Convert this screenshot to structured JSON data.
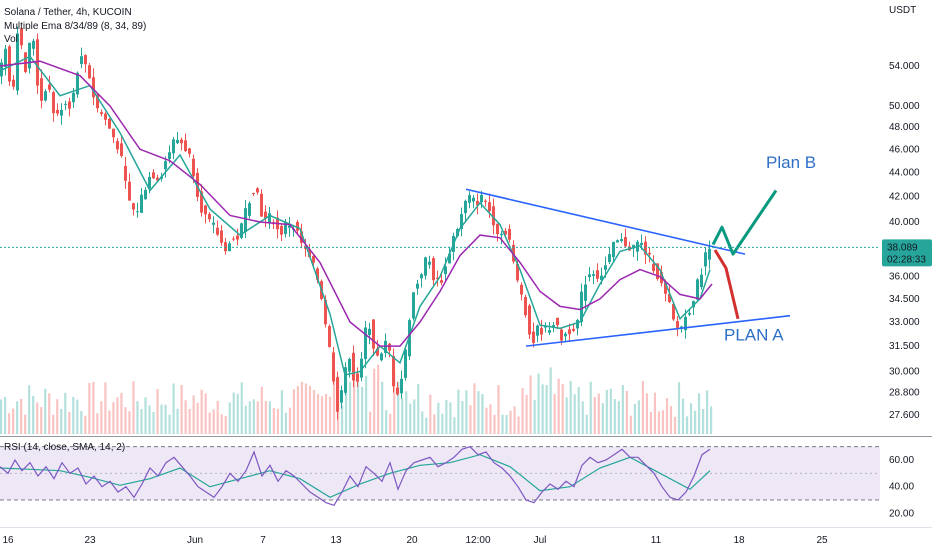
{
  "chart_data": {
    "type": "candlestick",
    "symbol_title": "Solana / Tether, 4h, KUCOIN",
    "indicators_legend": [
      "Multiple Ema 8/34/89 (8, 34, 89)",
      "Vol"
    ],
    "price_axis": {
      "currency": "USDT",
      "scale": "log",
      "ticks": [
        "54.000",
        "50.000",
        "48.000",
        "46.000",
        "44.000",
        "42.000",
        "40.000",
        "36.000",
        "34.500",
        "33.000",
        "31.500",
        "30.000",
        "28.800",
        "27.600"
      ],
      "range": [
        26.6,
        59.0
      ],
      "current_price": "38.089",
      "countdown": "02:28:33"
    },
    "time_axis": {
      "ticks": [
        "16",
        "23",
        "Jun",
        "7",
        "13",
        "20",
        "12:00",
        "Jul",
        "11",
        "18",
        "25"
      ]
    },
    "price_path": [
      [
        0,
        52.5
      ],
      [
        8,
        56.0
      ],
      [
        15,
        50.5
      ],
      [
        20,
        58.0
      ],
      [
        28,
        53.5
      ],
      [
        35,
        58.0
      ],
      [
        42,
        50.0
      ],
      [
        50,
        52.5
      ],
      [
        58,
        48.5
      ],
      [
        66,
        50.5
      ],
      [
        74,
        50.0
      ],
      [
        82,
        55.0
      ],
      [
        90,
        54.0
      ],
      [
        98,
        50.0
      ],
      [
        106,
        49.0
      ],
      [
        114,
        47.5
      ],
      [
        122,
        46.0
      ],
      [
        130,
        42.0
      ],
      [
        138,
        40.5
      ],
      [
        146,
        42.5
      ],
      [
        154,
        44.0
      ],
      [
        162,
        43.5
      ],
      [
        170,
        45.5
      ],
      [
        178,
        47.0
      ],
      [
        186,
        46.5
      ],
      [
        194,
        45.0
      ],
      [
        202,
        41.5
      ],
      [
        210,
        40.0
      ],
      [
        218,
        39.5
      ],
      [
        226,
        38.0
      ],
      [
        234,
        38.5
      ],
      [
        242,
        39.0
      ],
      [
        250,
        41.5
      ],
      [
        258,
        43.0
      ],
      [
        266,
        40.0
      ],
      [
        274,
        40.5
      ],
      [
        282,
        39.0
      ],
      [
        290,
        40.0
      ],
      [
        298,
        39.5
      ],
      [
        306,
        38.0
      ],
      [
        314,
        37.0
      ],
      [
        322,
        35.5
      ],
      [
        328,
        33.0
      ],
      [
        334,
        30.5
      ],
      [
        340,
        28.0
      ],
      [
        346,
        29.5
      ],
      [
        352,
        31.0
      ],
      [
        358,
        29.0
      ],
      [
        364,
        30.5
      ],
      [
        370,
        33.5
      ],
      [
        376,
        31.5
      ],
      [
        382,
        30.5
      ],
      [
        390,
        32.0
      ],
      [
        398,
        28.5
      ],
      [
        406,
        30.0
      ],
      [
        414,
        34.5
      ],
      [
        422,
        36.0
      ],
      [
        430,
        37.5
      ],
      [
        438,
        35.5
      ],
      [
        446,
        36.0
      ],
      [
        454,
        38.5
      ],
      [
        462,
        40.0
      ],
      [
        470,
        42.0
      ],
      [
        478,
        41.5
      ],
      [
        486,
        42.0
      ],
      [
        494,
        40.5
      ],
      [
        502,
        39.0
      ],
      [
        510,
        39.5
      ],
      [
        518,
        36.0
      ],
      [
        526,
        34.5
      ],
      [
        534,
        31.5
      ],
      [
        540,
        32.5
      ],
      [
        548,
        32.5
      ],
      [
        556,
        33.0
      ],
      [
        564,
        32.0
      ],
      [
        572,
        32.5
      ],
      [
        580,
        33.0
      ],
      [
        586,
        35.5
      ],
      [
        594,
        36.5
      ],
      [
        602,
        36.0
      ],
      [
        610,
        37.0
      ],
      [
        618,
        38.5
      ],
      [
        626,
        38.5
      ],
      [
        634,
        38.0
      ],
      [
        642,
        38.5
      ],
      [
        650,
        37.5
      ],
      [
        658,
        36.5
      ],
      [
        666,
        35.0
      ],
      [
        672,
        34.0
      ],
      [
        678,
        32.5
      ],
      [
        684,
        32.8
      ],
      [
        690,
        33.5
      ],
      [
        698,
        35.0
      ],
      [
        704,
        36.5
      ],
      [
        710,
        38.0
      ]
    ],
    "ema_fast": [
      [
        0,
        53.5
      ],
      [
        30,
        55.0
      ],
      [
        60,
        51.0
      ],
      [
        90,
        52.0
      ],
      [
        120,
        47.5
      ],
      [
        150,
        42.5
      ],
      [
        180,
        45.5
      ],
      [
        210,
        41.0
      ],
      [
        240,
        39.0
      ],
      [
        270,
        40.5
      ],
      [
        300,
        39.5
      ],
      [
        330,
        33.5
      ],
      [
        345,
        29.8
      ],
      [
        360,
        30.0
      ],
      [
        380,
        31.5
      ],
      [
        400,
        30.5
      ],
      [
        420,
        34.0
      ],
      [
        440,
        36.0
      ],
      [
        460,
        39.5
      ],
      [
        480,
        41.5
      ],
      [
        500,
        39.8
      ],
      [
        520,
        36.5
      ],
      [
        540,
        32.8
      ],
      [
        560,
        32.6
      ],
      [
        580,
        33.0
      ],
      [
        600,
        35.5
      ],
      [
        620,
        37.8
      ],
      [
        640,
        38.2
      ],
      [
        660,
        36.5
      ],
      [
        680,
        33.2
      ],
      [
        700,
        34.5
      ],
      [
        710,
        36.5
      ]
    ],
    "ema_slow": [
      [
        0,
        54.0
      ],
      [
        40,
        54.5
      ],
      [
        80,
        53.0
      ],
      [
        110,
        50.0
      ],
      [
        140,
        46.0
      ],
      [
        170,
        45.0
      ],
      [
        200,
        43.0
      ],
      [
        230,
        40.5
      ],
      [
        260,
        40.0
      ],
      [
        290,
        39.8
      ],
      [
        320,
        37.0
      ],
      [
        350,
        33.0
      ],
      [
        380,
        31.5
      ],
      [
        400,
        31.5
      ],
      [
        420,
        33.0
      ],
      [
        440,
        35.0
      ],
      [
        460,
        37.5
      ],
      [
        480,
        39.0
      ],
      [
        500,
        38.8
      ],
      [
        520,
        37.0
      ],
      [
        540,
        35.0
      ],
      [
        560,
        34.0
      ],
      [
        580,
        33.8
      ],
      [
        600,
        34.5
      ],
      [
        620,
        35.8
      ],
      [
        640,
        36.5
      ],
      [
        660,
        36.0
      ],
      [
        680,
        34.8
      ],
      [
        700,
        34.5
      ],
      [
        712,
        35.5
      ]
    ],
    "trendline_upper": {
      "from": [
        466,
        42.6
      ],
      "to": [
        745,
        37.6
      ]
    },
    "trendline_lower": {
      "from": [
        526,
        31.5
      ],
      "to": [
        790,
        33.4
      ]
    },
    "plan_b_path": [
      [
        713,
        38.3
      ],
      [
        722,
        39.6
      ],
      [
        733,
        37.6
      ],
      [
        776,
        42.5
      ]
    ],
    "plan_a_path": [
      [
        715,
        37.9
      ],
      [
        726,
        36.6
      ],
      [
        738,
        33.2
      ]
    ],
    "annotations": {
      "plan_b": "Plan B",
      "plan_a": "PLAN A"
    },
    "rsi": {
      "legend": "RSI (14, close, SMA, 14, 2)",
      "ticks": [
        "60.00",
        "40.00",
        "20.00"
      ],
      "range": [
        15,
        75
      ],
      "bands": [
        70,
        30
      ],
      "values": [
        [
          0,
          55
        ],
        [
          8,
          50
        ],
        [
          15,
          60
        ],
        [
          22,
          52
        ],
        [
          30,
          58
        ],
        [
          38,
          48
        ],
        [
          46,
          55
        ],
        [
          54,
          46
        ],
        [
          62,
          58
        ],
        [
          70,
          50
        ],
        [
          78,
          54
        ],
        [
          86,
          42
        ],
        [
          94,
          48
        ],
        [
          102,
          40
        ],
        [
          110,
          44
        ],
        [
          118,
          36
        ],
        [
          126,
          40
        ],
        [
          134,
          32
        ],
        [
          142,
          42
        ],
        [
          150,
          54
        ],
        [
          158,
          48
        ],
        [
          166,
          58
        ],
        [
          174,
          62
        ],
        [
          182,
          55
        ],
        [
          190,
          48
        ],
        [
          198,
          40
        ],
        [
          206,
          36
        ],
        [
          214,
          32
        ],
        [
          222,
          40
        ],
        [
          230,
          50
        ],
        [
          238,
          44
        ],
        [
          246,
          52
        ],
        [
          254,
          66
        ],
        [
          262,
          48
        ],
        [
          270,
          56
        ],
        [
          278,
          44
        ],
        [
          286,
          52
        ],
        [
          294,
          48
        ],
        [
          302,
          42
        ],
        [
          310,
          36
        ],
        [
          318,
          32
        ],
        [
          326,
          28
        ],
        [
          334,
          26
        ],
        [
          342,
          36
        ],
        [
          350,
          48
        ],
        [
          358,
          40
        ],
        [
          366,
          55
        ],
        [
          374,
          50
        ],
        [
          382,
          44
        ],
        [
          390,
          58
        ],
        [
          398,
          38
        ],
        [
          406,
          52
        ],
        [
          414,
          58
        ],
        [
          422,
          60
        ],
        [
          430,
          62
        ],
        [
          438,
          55
        ],
        [
          446,
          58
        ],
        [
          454,
          62
        ],
        [
          462,
          68
        ],
        [
          470,
          70
        ],
        [
          478,
          64
        ],
        [
          486,
          66
        ],
        [
          494,
          58
        ],
        [
          502,
          54
        ],
        [
          510,
          48
        ],
        [
          518,
          40
        ],
        [
          526,
          30
        ],
        [
          534,
          28
        ],
        [
          542,
          36
        ],
        [
          550,
          42
        ],
        [
          558,
          38
        ],
        [
          566,
          44
        ],
        [
          574,
          40
        ],
        [
          582,
          56
        ],
        [
          590,
          62
        ],
        [
          598,
          58
        ],
        [
          606,
          60
        ],
        [
          614,
          64
        ],
        [
          622,
          68
        ],
        [
          630,
          62
        ],
        [
          638,
          62
        ],
        [
          646,
          56
        ],
        [
          654,
          50
        ],
        [
          662,
          40
        ],
        [
          670,
          32
        ],
        [
          678,
          30
        ],
        [
          686,
          36
        ],
        [
          694,
          48
        ],
        [
          702,
          64
        ],
        [
          710,
          68
        ]
      ],
      "sma": [
        [
          0,
          54
        ],
        [
          30,
          53
        ],
        [
          60,
          52
        ],
        [
          90,
          47
        ],
        [
          120,
          41
        ],
        [
          150,
          46
        ],
        [
          180,
          54
        ],
        [
          210,
          40
        ],
        [
          240,
          46
        ],
        [
          270,
          52
        ],
        [
          300,
          46
        ],
        [
          330,
          32
        ],
        [
          360,
          42
        ],
        [
          390,
          50
        ],
        [
          420,
          56
        ],
        [
          450,
          58
        ],
        [
          480,
          64
        ],
        [
          510,
          55
        ],
        [
          540,
          37
        ],
        [
          570,
          40
        ],
        [
          600,
          54
        ],
        [
          630,
          62
        ],
        [
          660,
          50
        ],
        [
          690,
          38
        ],
        [
          710,
          52
        ]
      ]
    },
    "volume": {
      "bar_count": 178,
      "peak_value": 100,
      "up_color": "#26a69a",
      "down_color": "#ef5350"
    },
    "colors": {
      "bull_candle": "#26a69a",
      "bear_candle": "#ef5350",
      "ema_fast": "#26a69a",
      "ema_slow": "#9c27b0",
      "trendline": "#2962ff",
      "plan_b": "#089981",
      "plan_a": "#d32f2f",
      "annotation_text": "#2e6fc6",
      "price_tag": "#26a69a",
      "rsi_line": "#7e57c2",
      "rsi_sma": "#26a69a",
      "rsi_band_fill": "#ede7f6"
    }
  }
}
